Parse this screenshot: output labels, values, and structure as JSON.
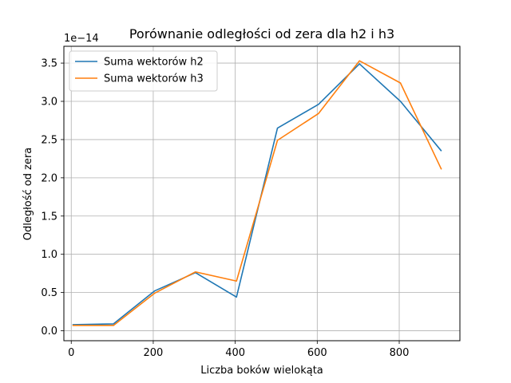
{
  "chart_data": {
    "type": "line",
    "title": "Porównanie odległości od zera dla h2 i h3",
    "xlabel": "Liczba boków wielokąta",
    "ylabel": "Odległość od zera",
    "offset_label": "1e−14",
    "xlim": [
      -18,
      948
    ],
    "ylim": [
      -0.13,
      3.72
    ],
    "xticks": [
      0,
      200,
      400,
      600,
      800
    ],
    "xtick_labels": [
      "0",
      "200",
      "400",
      "600",
      "800"
    ],
    "yticks": [
      0.0,
      0.5,
      1.0,
      1.5,
      2.0,
      2.5,
      3.0,
      3.5
    ],
    "ytick_labels": [
      "0.0",
      "0.5",
      "1.0",
      "1.5",
      "2.0",
      "2.5",
      "3.0",
      "3.5"
    ],
    "grid": true,
    "legend_position": "upper-left",
    "x": [
      3,
      103,
      203,
      303,
      403,
      503,
      603,
      703,
      803,
      903
    ],
    "series": [
      {
        "name": "Suma wektorów h2",
        "color": "#1f77b4",
        "values": [
          0.08,
          0.09,
          0.52,
          0.76,
          0.44,
          2.65,
          2.96,
          3.49,
          3.0,
          2.35
        ]
      },
      {
        "name": "Suma wektorów h3",
        "color": "#ff7f0e",
        "values": [
          0.07,
          0.07,
          0.49,
          0.77,
          0.65,
          2.49,
          2.84,
          3.53,
          3.24,
          2.11
        ]
      }
    ]
  }
}
